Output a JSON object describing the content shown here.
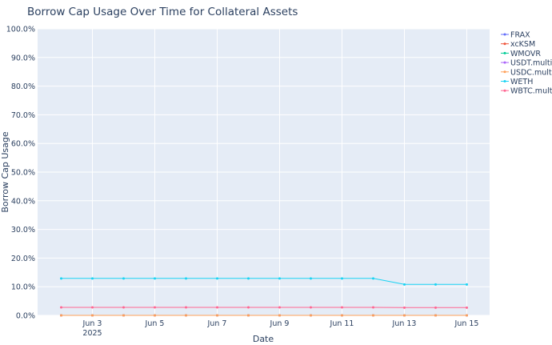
{
  "chart_data": {
    "type": "line",
    "title": "Borrow Cap Usage Over Time for Collateral Assets",
    "xlabel": "Date",
    "ylabel": "Borrow Cap Usage",
    "ylim": [
      0,
      100
    ],
    "yticks": [
      "0.0%",
      "10.0%",
      "20.0%",
      "30.0%",
      "40.0%",
      "50.0%",
      "60.0%",
      "70.0%",
      "80.0%",
      "90.0%",
      "100.0%"
    ],
    "x": [
      "2025-06-02",
      "2025-06-03",
      "2025-06-04",
      "2025-06-05",
      "2025-06-06",
      "2025-06-07",
      "2025-06-08",
      "2025-06-09",
      "2025-06-10",
      "2025-06-11",
      "2025-06-12",
      "2025-06-13",
      "2025-06-14",
      "2025-06-15"
    ],
    "xticks": [
      {
        "date": "2025-06-03",
        "label": "Jun 3",
        "sublabel": "2025"
      },
      {
        "date": "2025-06-05",
        "label": "Jun 5",
        "sublabel": ""
      },
      {
        "date": "2025-06-07",
        "label": "Jun 7",
        "sublabel": ""
      },
      {
        "date": "2025-06-09",
        "label": "Jun 9",
        "sublabel": ""
      },
      {
        "date": "2025-06-11",
        "label": "Jun 11",
        "sublabel": ""
      },
      {
        "date": "2025-06-13",
        "label": "Jun 13",
        "sublabel": ""
      },
      {
        "date": "2025-06-15",
        "label": "Jun 15",
        "sublabel": ""
      }
    ],
    "grid": true,
    "legend_position": "top-right",
    "series": [
      {
        "name": "FRAX",
        "color": "#636efa",
        "values": [
          0,
          0,
          0,
          0,
          0,
          0,
          0,
          0,
          0,
          0,
          0,
          0,
          0,
          0
        ]
      },
      {
        "name": "xcKSM",
        "color": "#ef553b",
        "values": [
          0,
          0,
          0,
          0,
          0,
          0,
          0,
          0,
          0,
          0,
          0,
          0,
          0,
          0
        ]
      },
      {
        "name": "WMOVR",
        "color": "#00cc96",
        "values": [
          0,
          0,
          0,
          0,
          0,
          0,
          0,
          0,
          0,
          0,
          0,
          0,
          0,
          0
        ]
      },
      {
        "name": "USDT.multi",
        "color": "#ab63fa",
        "values": [
          0,
          0,
          0,
          0,
          0,
          0,
          0,
          0,
          0,
          0,
          0,
          0,
          0,
          0
        ]
      },
      {
        "name": "USDC.multi",
        "color": "#ffa15a",
        "values": [
          0,
          0,
          0,
          0,
          0,
          0,
          0,
          0,
          0,
          0,
          0,
          0,
          0,
          0
        ]
      },
      {
        "name": "WETH",
        "color": "#19d3f3",
        "values": [
          12.9,
          12.9,
          12.9,
          12.9,
          12.9,
          12.9,
          12.9,
          12.9,
          12.9,
          12.9,
          12.9,
          10.8,
          10.8,
          10.8
        ]
      },
      {
        "name": "WBTC.multi",
        "color": "#ff6692",
        "values": [
          2.8,
          2.8,
          2.8,
          2.8,
          2.8,
          2.8,
          2.8,
          2.8,
          2.8,
          2.8,
          2.8,
          2.7,
          2.7,
          2.7
        ]
      }
    ]
  }
}
